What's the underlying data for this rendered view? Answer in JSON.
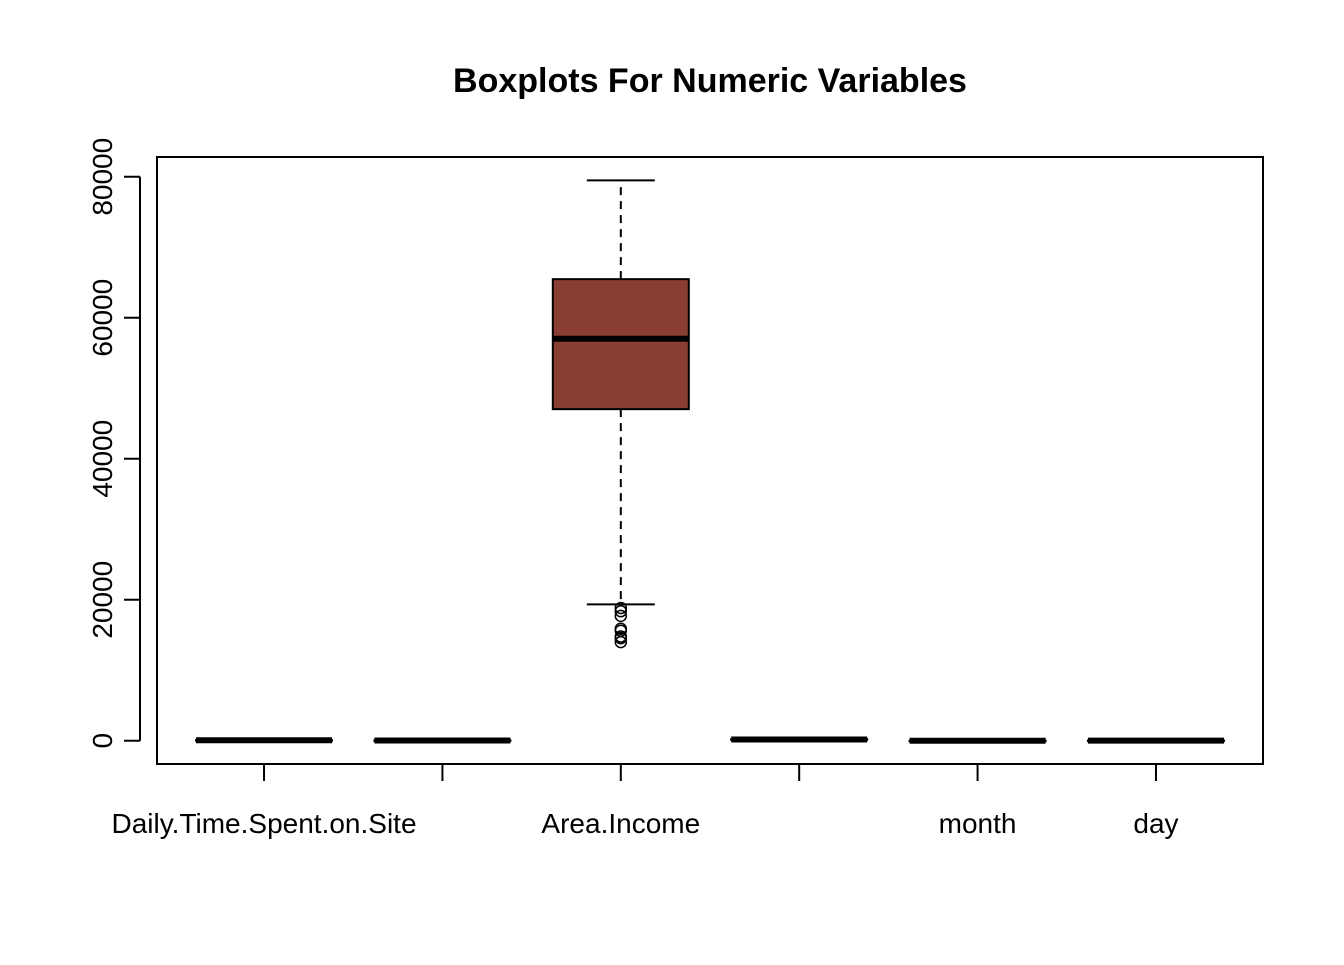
{
  "chart_data": {
    "type": "boxplot",
    "title": "Boxplots For Numeric Variables",
    "xlabel": "",
    "ylabel": "",
    "ylim": [
      -3300,
      82800
    ],
    "y_ticks": [
      0,
      20000,
      40000,
      60000,
      80000
    ],
    "grid": false,
    "legend": "none",
    "categories": [
      "Daily.Time.Spent.on.Site",
      "",
      "Area.Income",
      "",
      "month",
      "day"
    ],
    "boxes": [
      {
        "category_index": 0,
        "min": 32,
        "q1": 51,
        "median": 68,
        "q3": 78,
        "max": 91,
        "outliers": []
      },
      {
        "category_index": 1,
        "min": 19,
        "q1": 29,
        "median": 35,
        "q3": 42,
        "max": 61,
        "outliers": []
      },
      {
        "category_index": 2,
        "min": 19346,
        "q1": 47032,
        "median": 57012,
        "q3": 65471,
        "max": 79485,
        "outliers": [
          18820,
          18370,
          17710,
          15880,
          15600,
          14780,
          14550,
          13996
        ]
      },
      {
        "category_index": 3,
        "min": 105,
        "q1": 138,
        "median": 183,
        "q3": 218,
        "max": 270,
        "outliers": []
      },
      {
        "category_index": 4,
        "min": 1,
        "q1": 2,
        "median": 4,
        "q3": 5,
        "max": 7,
        "outliers": []
      },
      {
        "category_index": 5,
        "min": 1,
        "q1": 8,
        "median": 15,
        "q3": 23,
        "max": 31,
        "outliers": []
      }
    ],
    "colors": {
      "box_fill_highlight": "#8B3E32",
      "box_fill_default": "#ffffff",
      "stroke": "#000000"
    }
  }
}
